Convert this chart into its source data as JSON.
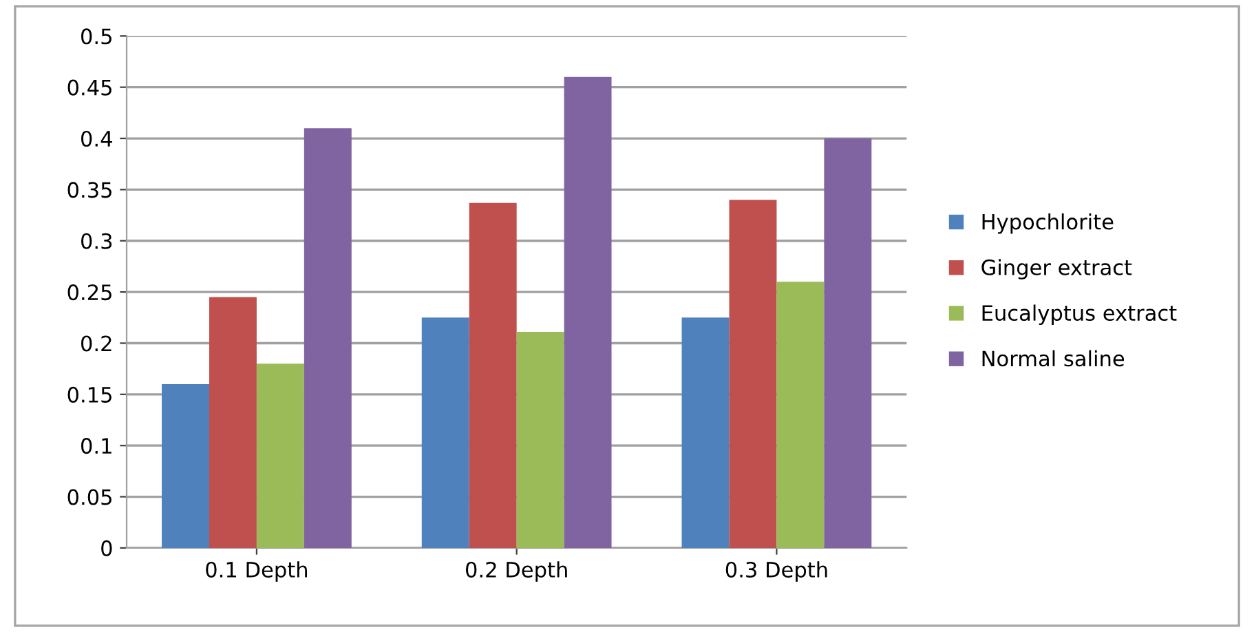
{
  "chart_data": {
    "type": "bar",
    "categories": [
      "0.1 Depth",
      "0.2 Depth",
      "0.3 Depth"
    ],
    "series": [
      {
        "name": "Hypochlorite",
        "color": "#4f81bd",
        "values": [
          0.16,
          0.225,
          0.225
        ]
      },
      {
        "name": "Ginger extract",
        "color": "#c0504d",
        "values": [
          0.245,
          0.337,
          0.34
        ]
      },
      {
        "name": "Eucalyptus extract",
        "color": "#9bbb59",
        "values": [
          0.18,
          0.211,
          0.26
        ]
      },
      {
        "name": "Normal saline",
        "color": "#8064a2",
        "values": [
          0.41,
          0.46,
          0.4
        ]
      }
    ],
    "ylim": [
      0,
      0.5
    ],
    "yticks": [
      0,
      0.05,
      0.1,
      0.15,
      0.2,
      0.25,
      0.3,
      0.35,
      0.4,
      0.45,
      0.5
    ],
    "grid": "y",
    "legend": "right"
  }
}
